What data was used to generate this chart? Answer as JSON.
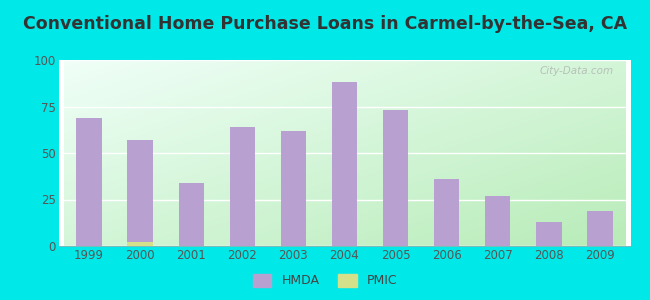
{
  "title": "Conventional Home Purchase Loans in Carmel-by-the-Sea, CA",
  "years": [
    1999,
    2000,
    2001,
    2002,
    2003,
    2004,
    2005,
    2006,
    2007,
    2008,
    2009
  ],
  "hmda_values": [
    69,
    57,
    34,
    64,
    62,
    88,
    73,
    36,
    27,
    13,
    19
  ],
  "pmic_values": [
    0,
    2,
    0,
    0,
    0,
    0,
    0,
    0,
    0,
    0,
    0
  ],
  "hmda_color": "#b8a0d0",
  "pmic_color": "#d4e08a",
  "background_outer": "#00e8e8",
  "background_inner_top_left": "#f0fff8",
  "background_inner_bottom_right": "#c0f0c0",
  "ylim": [
    0,
    100
  ],
  "yticks": [
    0,
    25,
    50,
    75,
    100
  ],
  "bar_width": 0.5,
  "title_fontsize": 12.5,
  "tick_fontsize": 8.5,
  "legend_fontsize": 9,
  "watermark": "City-Data.com"
}
